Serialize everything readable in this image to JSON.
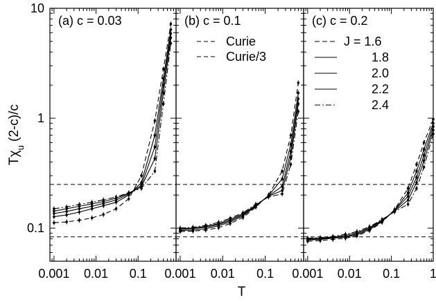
{
  "chart_data": {
    "type": "line",
    "figure": {
      "xlabel": "T",
      "ylabel_parts": {
        "T": "T",
        "chi": "χ",
        "sub": "u",
        "rest": " (2-c)/c"
      },
      "xscale": "log",
      "yscale": "log",
      "ylim": [
        0.05,
        10
      ],
      "y_tick_labels": [
        {
          "value": 0.1,
          "label": "0.1"
        },
        {
          "value": 1,
          "label": "1"
        },
        {
          "value": 10,
          "label": "10"
        }
      ],
      "reference_lines": [
        {
          "name": "Curie",
          "y": 0.25,
          "style": "dashed"
        },
        {
          "name": "Curie/3",
          "y": 0.0833,
          "style": "dashed"
        }
      ],
      "legend_j": [
        {
          "label": "J = 1.6",
          "style": "dashed"
        },
        {
          "label": "1.8",
          "style": "solid"
        },
        {
          "label": "2.0",
          "style": "solid"
        },
        {
          "label": "2.2",
          "style": "solid"
        },
        {
          "label": "2.4",
          "style": "dashdot"
        }
      ]
    },
    "panels": [
      {
        "label": "(a) c = 0.03",
        "xlim": [
          0.0008,
          0.8
        ],
        "x_tick_labels": [
          {
            "value": 0.001,
            "label": "0.001"
          },
          {
            "value": 0.01,
            "label": "0.01"
          },
          {
            "value": 0.1,
            "label": "0.1"
          }
        ],
        "x": [
          0.001,
          0.002,
          0.004,
          0.008,
          0.015,
          0.03,
          0.06,
          0.12,
          0.25,
          0.4,
          0.6
        ],
        "series": [
          {
            "J": 1.6,
            "values": [
              0.112,
              0.114,
              0.118,
              0.124,
              0.133,
              0.15,
              0.185,
              0.3,
              0.95,
              2.8,
              7.2
            ]
          },
          {
            "J": 1.8,
            "values": [
              0.127,
              0.132,
              0.14,
              0.15,
              0.16,
              0.172,
              0.2,
              0.26,
              0.7,
              2.3,
              6.4
            ]
          },
          {
            "J": 2.0,
            "values": [
              0.136,
              0.142,
              0.15,
              0.158,
              0.168,
              0.18,
              0.205,
              0.245,
              0.55,
              2.0,
              5.9
            ]
          },
          {
            "J": 2.2,
            "values": [
              0.143,
              0.15,
              0.158,
              0.166,
              0.175,
              0.187,
              0.208,
              0.238,
              0.43,
              1.7,
              5.4
            ]
          },
          {
            "J": 2.4,
            "values": [
              0.15,
              0.156,
              0.164,
              0.172,
              0.181,
              0.192,
              0.21,
              0.23,
              0.33,
              1.35,
              4.8
            ]
          }
        ]
      },
      {
        "label": "(b) c = 0.1",
        "xlim": [
          0.0008,
          0.8
        ],
        "x_tick_labels": [
          {
            "value": 0.001,
            "label": "0.001"
          },
          {
            "value": 0.01,
            "label": "0.01"
          },
          {
            "value": 0.1,
            "label": "0.1"
          }
        ],
        "legend_refs": true,
        "x": [
          0.001,
          0.002,
          0.004,
          0.008,
          0.015,
          0.03,
          0.06,
          0.12,
          0.25,
          0.4,
          0.6
        ],
        "series": [
          {
            "J": 1.6,
            "values": [
              0.093,
              0.094,
              0.096,
              0.101,
              0.11,
              0.125,
              0.155,
              0.2,
              0.33,
              0.7,
              2.1
            ]
          },
          {
            "J": 1.8,
            "values": [
              0.095,
              0.096,
              0.099,
              0.105,
              0.114,
              0.129,
              0.158,
              0.198,
              0.28,
              0.58,
              1.7
            ]
          },
          {
            "J": 2.0,
            "values": [
              0.097,
              0.099,
              0.102,
              0.108,
              0.117,
              0.132,
              0.16,
              0.196,
              0.24,
              0.5,
              1.5
            ]
          },
          {
            "J": 2.2,
            "values": [
              0.099,
              0.1,
              0.104,
              0.11,
              0.12,
              0.135,
              0.162,
              0.195,
              0.22,
              0.44,
              1.35
            ]
          },
          {
            "J": 2.4,
            "values": [
              0.1,
              0.102,
              0.106,
              0.113,
              0.123,
              0.138,
              0.165,
              0.192,
              0.205,
              0.38,
              1.15
            ]
          }
        ]
      },
      {
        "label": "(c) c = 0.2",
        "xlim": [
          0.0008,
          1
        ],
        "x_tick_labels": [
          {
            "value": 0.001,
            "label": "0.001"
          },
          {
            "value": 0.01,
            "label": "0.01"
          },
          {
            "value": 0.1,
            "label": "0.1"
          },
          {
            "value": 1,
            "label": "1"
          }
        ],
        "legend_j": true,
        "x": [
          0.001,
          0.002,
          0.004,
          0.008,
          0.015,
          0.03,
          0.06,
          0.12,
          0.25,
          0.4,
          0.6,
          1.0
        ],
        "series": [
          {
            "J": 1.6,
            "values": [
              0.076,
              0.077,
              0.079,
              0.081,
              0.085,
              0.095,
              0.113,
              0.148,
              0.23,
              0.38,
              0.6,
              0.98
            ]
          },
          {
            "J": 1.8,
            "values": [
              0.078,
              0.079,
              0.081,
              0.083,
              0.087,
              0.097,
              0.115,
              0.146,
              0.21,
              0.33,
              0.52,
              0.9
            ]
          },
          {
            "J": 2.0,
            "values": [
              0.079,
              0.08,
              0.082,
              0.084,
              0.089,
              0.099,
              0.117,
              0.145,
              0.195,
              0.29,
              0.46,
              0.84
            ]
          },
          {
            "J": 2.2,
            "values": [
              0.08,
              0.081,
              0.083,
              0.086,
              0.091,
              0.101,
              0.118,
              0.143,
              0.18,
              0.26,
              0.41,
              0.78
            ]
          },
          {
            "J": 2.4,
            "values": [
              0.081,
              0.082,
              0.084,
              0.088,
              0.093,
              0.103,
              0.12,
              0.141,
              0.165,
              0.23,
              0.36,
              0.72
            ]
          }
        ]
      }
    ]
  }
}
